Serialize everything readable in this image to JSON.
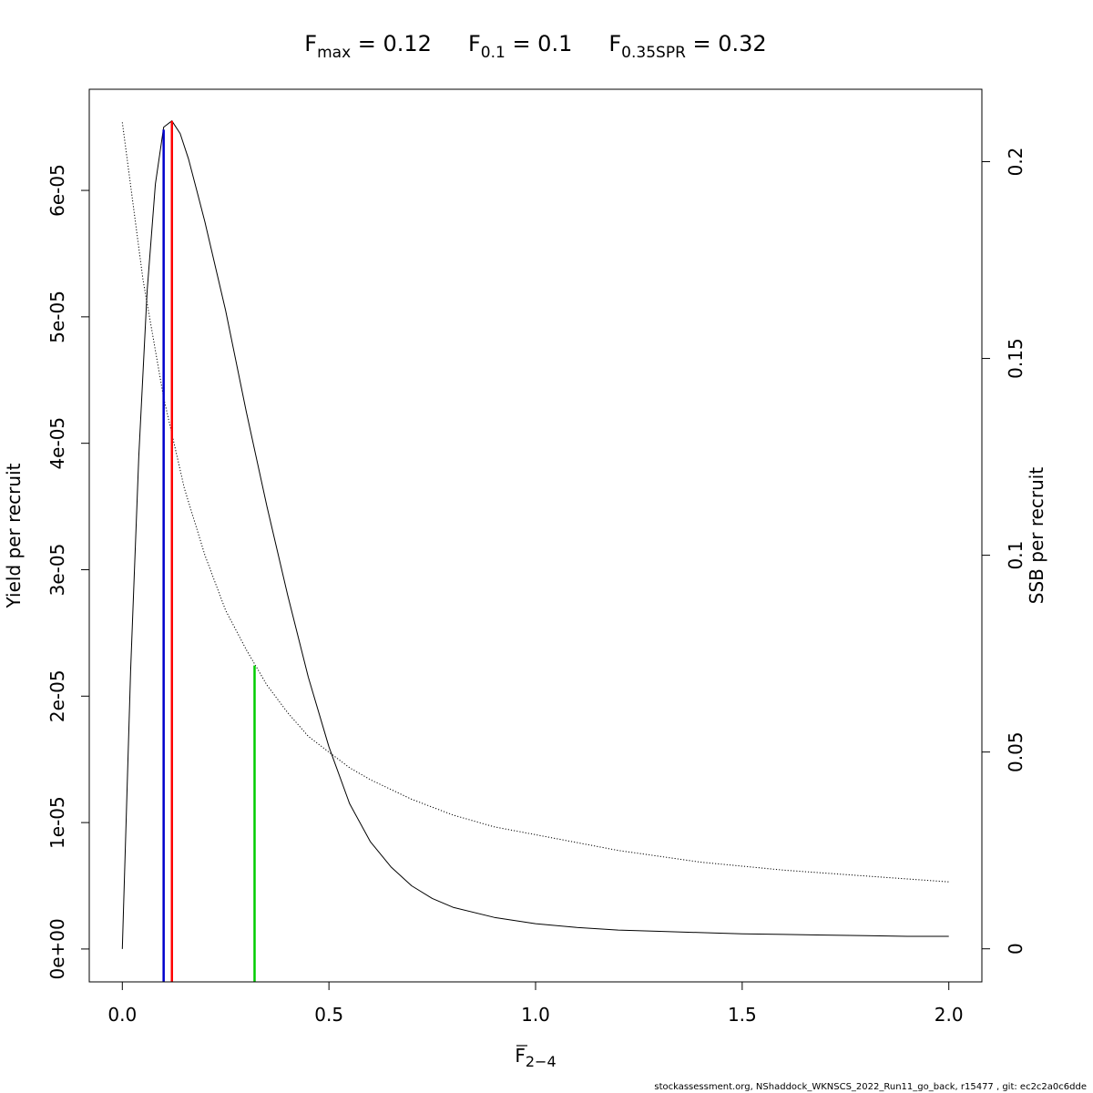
{
  "chart_data": {
    "type": "line",
    "title_parts": [
      {
        "base": "F",
        "sub": "max",
        "rest": " = 0.12"
      },
      {
        "base": "F",
        "sub": "0.1",
        "rest": " = 0.1"
      },
      {
        "base": "F",
        "sub": "0.35SPR",
        "rest": " = 0.32"
      }
    ],
    "xlabel_base": "F",
    "xlabel_sub": "2−4",
    "ylabel_left": "Yield per recruit",
    "ylabel_right": "SSB per recruit",
    "xlim": [
      -0.08,
      2.08
    ],
    "ylim_left": [
      -2.6e-06,
      6.8e-05
    ],
    "ylim_right": [
      -0.0084,
      0.2184
    ],
    "xticks": [
      0,
      0.5,
      1,
      1.5,
      2
    ],
    "xtick_labels": [
      "0.0",
      "0.5",
      "1.0",
      "1.5",
      "2.0"
    ],
    "yticks_left": [
      0,
      1e-05,
      2e-05,
      3e-05,
      4e-05,
      5e-05,
      6e-05
    ],
    "ytick_labels_left": [
      "0e+00",
      "1e-05",
      "2e-05",
      "3e-05",
      "4e-05",
      "5e-05",
      "6e-05"
    ],
    "yticks_right": [
      0,
      0.05,
      0.1,
      0.15,
      0.2
    ],
    "ytick_labels_right": [
      "0",
      "0.05",
      "0.1",
      "0.15",
      "0.2"
    ],
    "series": [
      {
        "style": "solid",
        "axis": "left",
        "x": [
          0,
          0.02,
          0.04,
          0.06,
          0.08,
          0.1,
          0.12,
          0.14,
          0.16,
          0.18,
          0.2,
          0.25,
          0.3,
          0.35,
          0.4,
          0.45,
          0.5,
          0.55,
          0.6,
          0.65,
          0.7,
          0.75,
          0.8,
          0.9,
          1.0,
          1.1,
          1.2,
          1.3,
          1.4,
          1.5,
          1.6,
          1.7,
          1.8,
          1.9,
          2.0
        ],
        "y": [
          0,
          2.2e-05,
          3.9e-05,
          5.2e-05,
          6.05e-05,
          6.5e-05,
          6.55e-05,
          6.45e-05,
          6.25e-05,
          6e-05,
          5.75e-05,
          5.05e-05,
          4.25e-05,
          3.5e-05,
          2.8e-05,
          2.15e-05,
          1.6e-05,
          1.15e-05,
          8.5e-06,
          6.5e-06,
          5e-06,
          4e-06,
          3.3e-06,
          2.5e-06,
          2e-06,
          1.7e-06,
          1.5e-06,
          1.4e-06,
          1.3e-06,
          1.2e-06,
          1.15e-06,
          1.1e-06,
          1.05e-06,
          1e-06,
          1e-06
        ]
      },
      {
        "style": "dotted",
        "axis": "right",
        "x": [
          0,
          0.05,
          0.1,
          0.15,
          0.2,
          0.25,
          0.3,
          0.35,
          0.4,
          0.45,
          0.5,
          0.55,
          0.6,
          0.7,
          0.8,
          0.9,
          1.0,
          1.2,
          1.4,
          1.6,
          1.8,
          2.0
        ],
        "y": [
          0.21,
          0.17,
          0.14,
          0.117,
          0.1,
          0.086,
          0.076,
          0.067,
          0.06,
          0.054,
          0.05,
          0.046,
          0.043,
          0.038,
          0.034,
          0.031,
          0.029,
          0.025,
          0.022,
          0.02,
          0.0185,
          0.017
        ]
      }
    ],
    "reference_lines": [
      {
        "color": "#0000cd",
        "x": 0.1,
        "y_bottom": -2.6e-06,
        "y_top": 6.48e-05,
        "axis": "left"
      },
      {
        "color": "#ff0000",
        "x": 0.12,
        "y_bottom": -2.6e-06,
        "y_top": 6.55e-05,
        "axis": "left"
      },
      {
        "color": "#00cd00",
        "x": 0.32,
        "y_bottom": -0.0084,
        "y_top": 0.072,
        "axis": "right"
      }
    ]
  },
  "footer": "stockassessment.org, NShaddock_WKNSCS_2022_Run11_go_back, r15477 , git: ec2c2a0c6dde"
}
